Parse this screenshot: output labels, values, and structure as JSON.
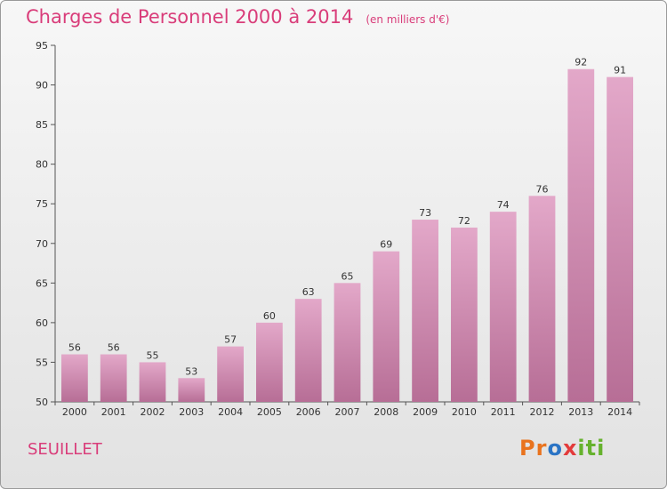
{
  "chart_data": {
    "type": "bar",
    "title": "Charges de Personnel 2000 à 2014",
    "subtitle": "(en milliers d'€)",
    "categories": [
      "2000",
      "2001",
      "2002",
      "2003",
      "2004",
      "2005",
      "2006",
      "2007",
      "2008",
      "2009",
      "2010",
      "2011",
      "2012",
      "2013",
      "2014"
    ],
    "values": [
      56,
      56,
      55,
      53,
      57,
      60,
      63,
      65,
      69,
      73,
      72,
      74,
      76,
      92,
      91
    ],
    "ylim": [
      50,
      95
    ],
    "yticks": [
      50,
      55,
      60,
      65,
      70,
      75,
      80,
      85,
      90,
      95
    ],
    "grid": false,
    "bar_color_top": "#e3a8c9",
    "bar_color_bottom": "#b76e96"
  },
  "footer": {
    "commune": "SEUILLET",
    "logo_parts": [
      "Pr",
      "o",
      "x",
      "iti"
    ]
  }
}
